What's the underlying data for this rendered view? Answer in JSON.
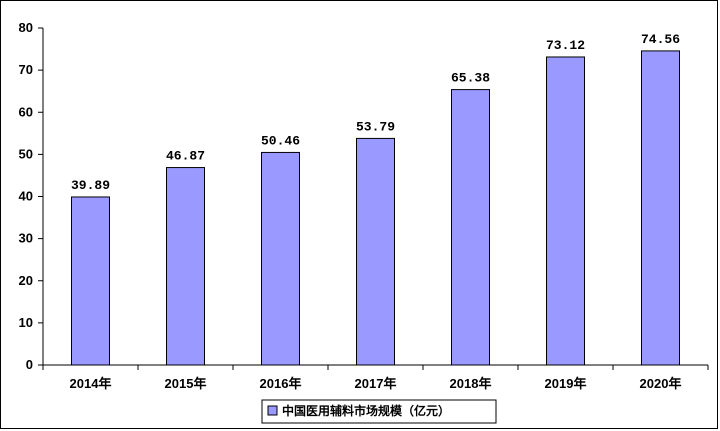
{
  "chart_data": {
    "type": "bar",
    "categories": [
      "2014年",
      "2015年",
      "2016年",
      "2017年",
      "2018年",
      "2019年",
      "2020年"
    ],
    "series": [
      {
        "name": "中国医用辅料市场规模（亿元）",
        "values": [
          39.89,
          46.87,
          50.46,
          53.79,
          65.38,
          73.12,
          74.56
        ],
        "labels": [
          "39.89",
          "46.87",
          "50.46",
          "53.79",
          "65.38",
          "73.12",
          "74.56"
        ],
        "color": "#9999FF"
      }
    ],
    "ylim": [
      0,
      80
    ],
    "yticks": [
      0,
      10,
      20,
      30,
      40,
      50,
      60,
      70,
      80
    ],
    "grid": false,
    "legend_position": "bottom"
  }
}
